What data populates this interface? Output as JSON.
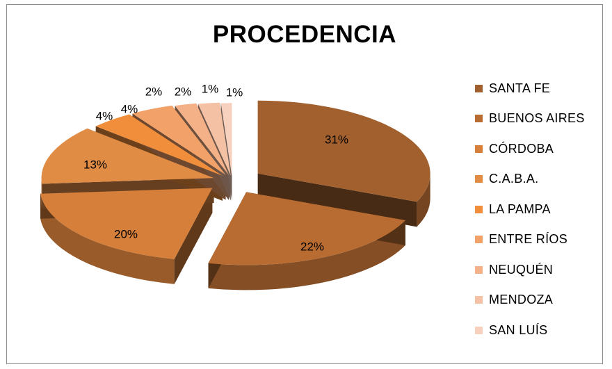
{
  "chart_data": {
    "type": "pie",
    "title": "PROCEDENCIA",
    "categories": [
      "SANTA FE",
      "BUENOS AIRES",
      "CÓRDOBA",
      "C.A.B.A.",
      "LA PAMPA",
      "ENTRE RÍOS",
      "NEUQUÉN",
      "MENDOZA",
      "SAN LUÍS"
    ],
    "values": [
      31,
      22,
      20,
      13,
      4,
      4,
      2,
      2,
      1
    ],
    "data_labels": [
      "31%",
      "22%",
      "20%",
      "13%",
      "4%",
      "4%",
      "2%",
      "2%",
      "1%"
    ],
    "extra_data_labels": [
      "1%"
    ],
    "colors": [
      "#a1602d",
      "#b96c32",
      "#d57f3a",
      "#e08c45",
      "#f08e3c",
      "#f2a168",
      "#f4b086",
      "#f5c1a4",
      "#f7d1be"
    ],
    "legend_position": "right",
    "exploded": true,
    "style": "3d"
  }
}
